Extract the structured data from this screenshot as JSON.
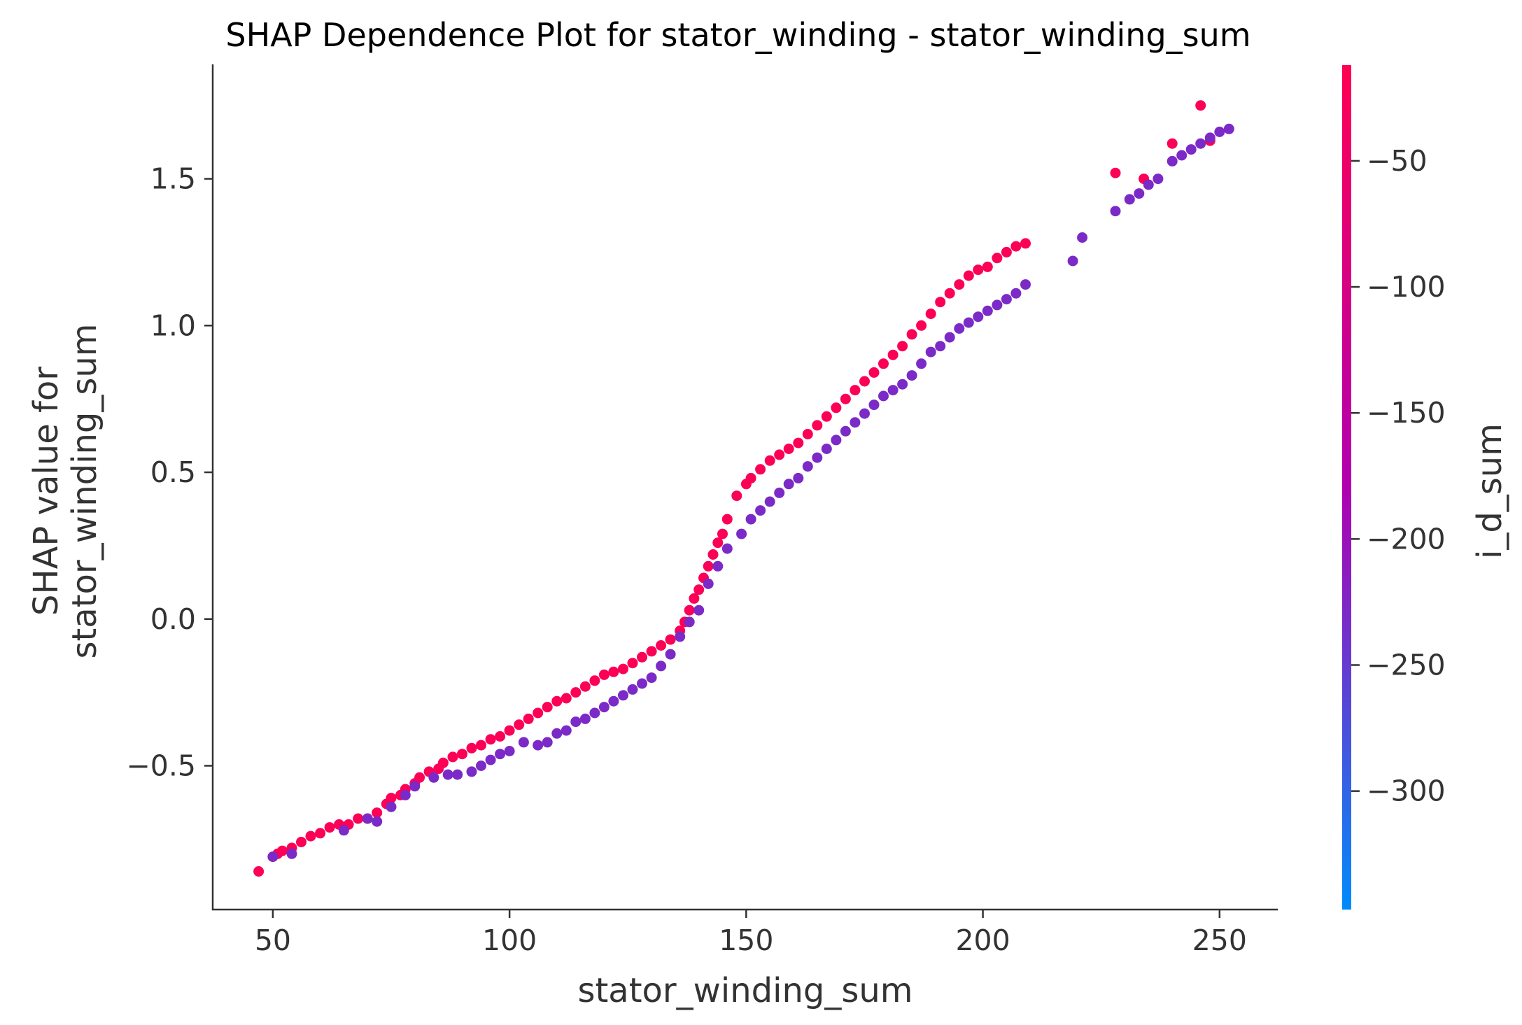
{
  "chart_data": {
    "type": "scatter",
    "title": "SHAP Dependence Plot for stator_winding - stator_winding_sum",
    "xlabel": "stator_winding_sum",
    "ylabel_lines": [
      "SHAP value for",
      "stator_winding_sum"
    ],
    "xlim": [
      37.3,
      262.3
    ],
    "ylim": [
      -0.99,
      1.89
    ],
    "xticks": [
      50,
      100,
      150,
      200,
      250
    ],
    "xtick_labels": [
      "50",
      "100",
      "150",
      "200",
      "250"
    ],
    "yticks": [
      -0.5,
      0.0,
      0.5,
      1.0,
      1.5
    ],
    "ytick_labels": [
      "−0.5",
      "0.0",
      "0.5",
      "1.0",
      "1.5"
    ],
    "grid": false,
    "colorbar": {
      "label": "i_d_sum",
      "range": [
        -347,
        -12
      ],
      "ticks": [
        -50,
        -100,
        -150,
        -200,
        -250,
        -300
      ],
      "tick_labels": [
        "−50",
        "−100",
        "−150",
        "−200",
        "−250",
        "−300"
      ],
      "color_low": "#008bfb",
      "color_mid": "#b000b0",
      "color_high": "#ff0052"
    },
    "series": [
      {
        "color_value": -20,
        "points": [
          [
            47,
            -0.86
          ],
          [
            50,
            -0.81
          ],
          [
            51,
            -0.8
          ],
          [
            52,
            -0.79
          ],
          [
            54,
            -0.78
          ],
          [
            56,
            -0.76
          ],
          [
            58,
            -0.74
          ],
          [
            60,
            -0.73
          ],
          [
            62,
            -0.71
          ],
          [
            64,
            -0.7
          ],
          [
            66,
            -0.7
          ],
          [
            68,
            -0.68
          ],
          [
            70,
            -0.68
          ],
          [
            72,
            -0.66
          ],
          [
            74,
            -0.63
          ],
          [
            75,
            -0.61
          ],
          [
            77,
            -0.6
          ],
          [
            78,
            -0.58
          ],
          [
            80,
            -0.56
          ],
          [
            81,
            -0.54
          ],
          [
            83,
            -0.52
          ],
          [
            85,
            -0.51
          ],
          [
            86,
            -0.49
          ],
          [
            88,
            -0.47
          ],
          [
            90,
            -0.46
          ],
          [
            92,
            -0.44
          ],
          [
            94,
            -0.43
          ],
          [
            96,
            -0.41
          ],
          [
            98,
            -0.4
          ],
          [
            100,
            -0.38
          ],
          [
            102,
            -0.36
          ],
          [
            104,
            -0.34
          ],
          [
            106,
            -0.32
          ],
          [
            108,
            -0.3
          ],
          [
            110,
            -0.28
          ],
          [
            112,
            -0.27
          ],
          [
            114,
            -0.25
          ],
          [
            116,
            -0.23
          ],
          [
            118,
            -0.21
          ],
          [
            120,
            -0.19
          ],
          [
            122,
            -0.18
          ],
          [
            124,
            -0.17
          ],
          [
            126,
            -0.15
          ],
          [
            128,
            -0.13
          ],
          [
            130,
            -0.11
          ],
          [
            132,
            -0.09
          ],
          [
            134,
            -0.07
          ],
          [
            136,
            -0.04
          ],
          [
            137,
            -0.01
          ],
          [
            138,
            0.03
          ],
          [
            139,
            0.07
          ],
          [
            140,
            0.1
          ],
          [
            141,
            0.14
          ],
          [
            142,
            0.18
          ],
          [
            143,
            0.22
          ],
          [
            144,
            0.26
          ],
          [
            145,
            0.29
          ],
          [
            146,
            0.34
          ],
          [
            148,
            0.42
          ],
          [
            150,
            0.46
          ],
          [
            151,
            0.48
          ],
          [
            153,
            0.51
          ],
          [
            155,
            0.54
          ],
          [
            157,
            0.56
          ],
          [
            159,
            0.58
          ],
          [
            161,
            0.6
          ],
          [
            163,
            0.63
          ],
          [
            165,
            0.66
          ],
          [
            167,
            0.69
          ],
          [
            169,
            0.72
          ],
          [
            171,
            0.75
          ],
          [
            173,
            0.78
          ],
          [
            175,
            0.81
          ],
          [
            177,
            0.84
          ],
          [
            179,
            0.87
          ],
          [
            181,
            0.9
          ],
          [
            183,
            0.93
          ],
          [
            185,
            0.97
          ],
          [
            187,
            1.0
          ],
          [
            189,
            1.04
          ],
          [
            191,
            1.08
          ],
          [
            193,
            1.11
          ],
          [
            195,
            1.14
          ],
          [
            197,
            1.17
          ],
          [
            199,
            1.19
          ],
          [
            201,
            1.2
          ],
          [
            203,
            1.23
          ],
          [
            205,
            1.25
          ],
          [
            207,
            1.27
          ],
          [
            209,
            1.28
          ],
          [
            228,
            1.52
          ],
          [
            234,
            1.5
          ],
          [
            240,
            1.62
          ],
          [
            246,
            1.75
          ],
          [
            248,
            1.63
          ]
        ]
      },
      {
        "color_value": -230,
        "points": [
          [
            50,
            -0.81
          ],
          [
            54,
            -0.8
          ],
          [
            65,
            -0.72
          ],
          [
            70,
            -0.68
          ],
          [
            72,
            -0.69
          ],
          [
            75,
            -0.64
          ],
          [
            78,
            -0.6
          ],
          [
            80,
            -0.57
          ],
          [
            84,
            -0.54
          ],
          [
            87,
            -0.53
          ],
          [
            89,
            -0.53
          ],
          [
            92,
            -0.52
          ],
          [
            94,
            -0.5
          ],
          [
            96,
            -0.48
          ],
          [
            98,
            -0.46
          ],
          [
            100,
            -0.45
          ],
          [
            103,
            -0.42
          ],
          [
            106,
            -0.43
          ],
          [
            108,
            -0.42
          ],
          [
            110,
            -0.39
          ],
          [
            112,
            -0.38
          ],
          [
            114,
            -0.35
          ],
          [
            116,
            -0.34
          ],
          [
            118,
            -0.32
          ],
          [
            120,
            -0.3
          ],
          [
            122,
            -0.28
          ],
          [
            124,
            -0.26
          ],
          [
            126,
            -0.24
          ],
          [
            128,
            -0.22
          ],
          [
            130,
            -0.2
          ],
          [
            132,
            -0.16
          ],
          [
            134,
            -0.12
          ],
          [
            136,
            -0.06
          ],
          [
            138,
            -0.01
          ],
          [
            140,
            0.03
          ],
          [
            142,
            0.12
          ],
          [
            144,
            0.18
          ],
          [
            146,
            0.24
          ],
          [
            149,
            0.29
          ],
          [
            151,
            0.34
          ],
          [
            153,
            0.37
          ],
          [
            155,
            0.4
          ],
          [
            157,
            0.43
          ],
          [
            159,
            0.46
          ],
          [
            161,
            0.48
          ],
          [
            163,
            0.52
          ],
          [
            165,
            0.55
          ],
          [
            167,
            0.58
          ],
          [
            169,
            0.61
          ],
          [
            171,
            0.64
          ],
          [
            173,
            0.67
          ],
          [
            175,
            0.7
          ],
          [
            177,
            0.73
          ],
          [
            179,
            0.76
          ],
          [
            181,
            0.78
          ],
          [
            183,
            0.8
          ],
          [
            185,
            0.83
          ],
          [
            187,
            0.87
          ],
          [
            189,
            0.91
          ],
          [
            191,
            0.93
          ],
          [
            193,
            0.96
          ],
          [
            195,
            0.99
          ],
          [
            197,
            1.01
          ],
          [
            199,
            1.03
          ],
          [
            201,
            1.05
          ],
          [
            203,
            1.07
          ],
          [
            205,
            1.09
          ],
          [
            207,
            1.11
          ],
          [
            209,
            1.14
          ],
          [
            219,
            1.22
          ],
          [
            221,
            1.3
          ],
          [
            228,
            1.39
          ],
          [
            231,
            1.43
          ],
          [
            233,
            1.45
          ],
          [
            235,
            1.48
          ],
          [
            237,
            1.5
          ],
          [
            240,
            1.56
          ],
          [
            242,
            1.58
          ],
          [
            244,
            1.6
          ],
          [
            246,
            1.62
          ],
          [
            248,
            1.64
          ],
          [
            250,
            1.66
          ],
          [
            252,
            1.67
          ]
        ]
      }
    ]
  }
}
